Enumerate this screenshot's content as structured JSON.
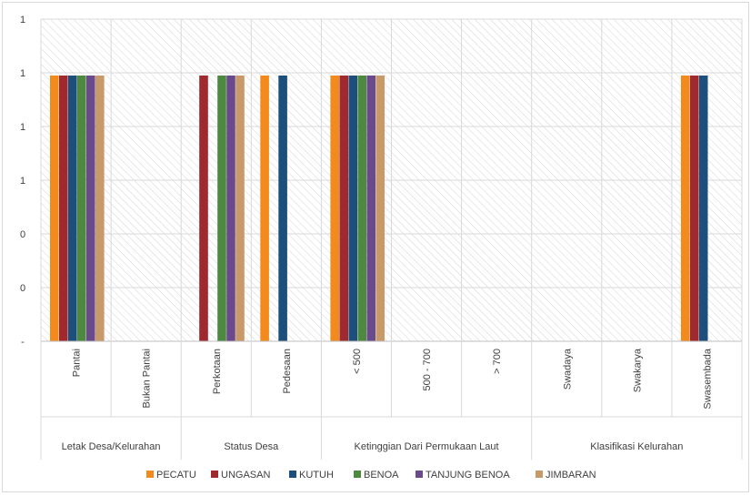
{
  "chart_data": {
    "type": "bar",
    "title": "",
    "xlabel": "",
    "ylabel": "",
    "ylim": [
      0,
      1
    ],
    "y_tick_labels": [
      "-",
      "0",
      "0",
      "1",
      "1",
      "1",
      "1"
    ],
    "grid": true,
    "legend_position": "bottom",
    "groups": [
      {
        "label": "Letak Desa/Kelurahan",
        "categories": [
          "Pantai",
          "Bukan Pantai"
        ]
      },
      {
        "label": "Status Desa",
        "categories": [
          "Perkotaan",
          "Pedesaan"
        ]
      },
      {
        "label": "Ketinggian Dari Permukaan Laut",
        "categories": [
          "< 500",
          "500 - 700",
          "> 700"
        ]
      },
      {
        "label": "Klasifikasi Kelurahan",
        "categories": [
          "Swadaya",
          "Swakarya",
          "Swasembada"
        ]
      }
    ],
    "categories": [
      "Pantai",
      "Bukan Pantai",
      "Perkotaan",
      "Pedesaan",
      "< 500",
      "500 - 700",
      "> 700",
      "Swadaya",
      "Swakarya",
      "Swasembada"
    ],
    "series": [
      {
        "name": "PECATU",
        "color": "#f28a1e",
        "values": [
          1,
          0,
          0,
          1,
          1,
          0,
          0,
          0,
          0,
          1
        ]
      },
      {
        "name": "UNGASAN",
        "color": "#a0282f",
        "values": [
          1,
          0,
          1,
          0,
          1,
          0,
          0,
          0,
          0,
          1
        ]
      },
      {
        "name": "KUTUH",
        "color": "#1c4f7c",
        "values": [
          1,
          0,
          0,
          1,
          1,
          0,
          0,
          0,
          0,
          1
        ]
      },
      {
        "name": "BENOA",
        "color": "#4d8a3f",
        "values": [
          1,
          0,
          1,
          0,
          1,
          0,
          0,
          0,
          0,
          0
        ]
      },
      {
        "name": "TANJUNG BENOA",
        "color": "#6a4a8c",
        "values": [
          1,
          0,
          1,
          0,
          1,
          0,
          0,
          0,
          0,
          0
        ]
      },
      {
        "name": "JIMBARAN",
        "color": "#c89a6a",
        "values": [
          1,
          0,
          1,
          0,
          1,
          0,
          0,
          0,
          0,
          0
        ]
      }
    ]
  }
}
